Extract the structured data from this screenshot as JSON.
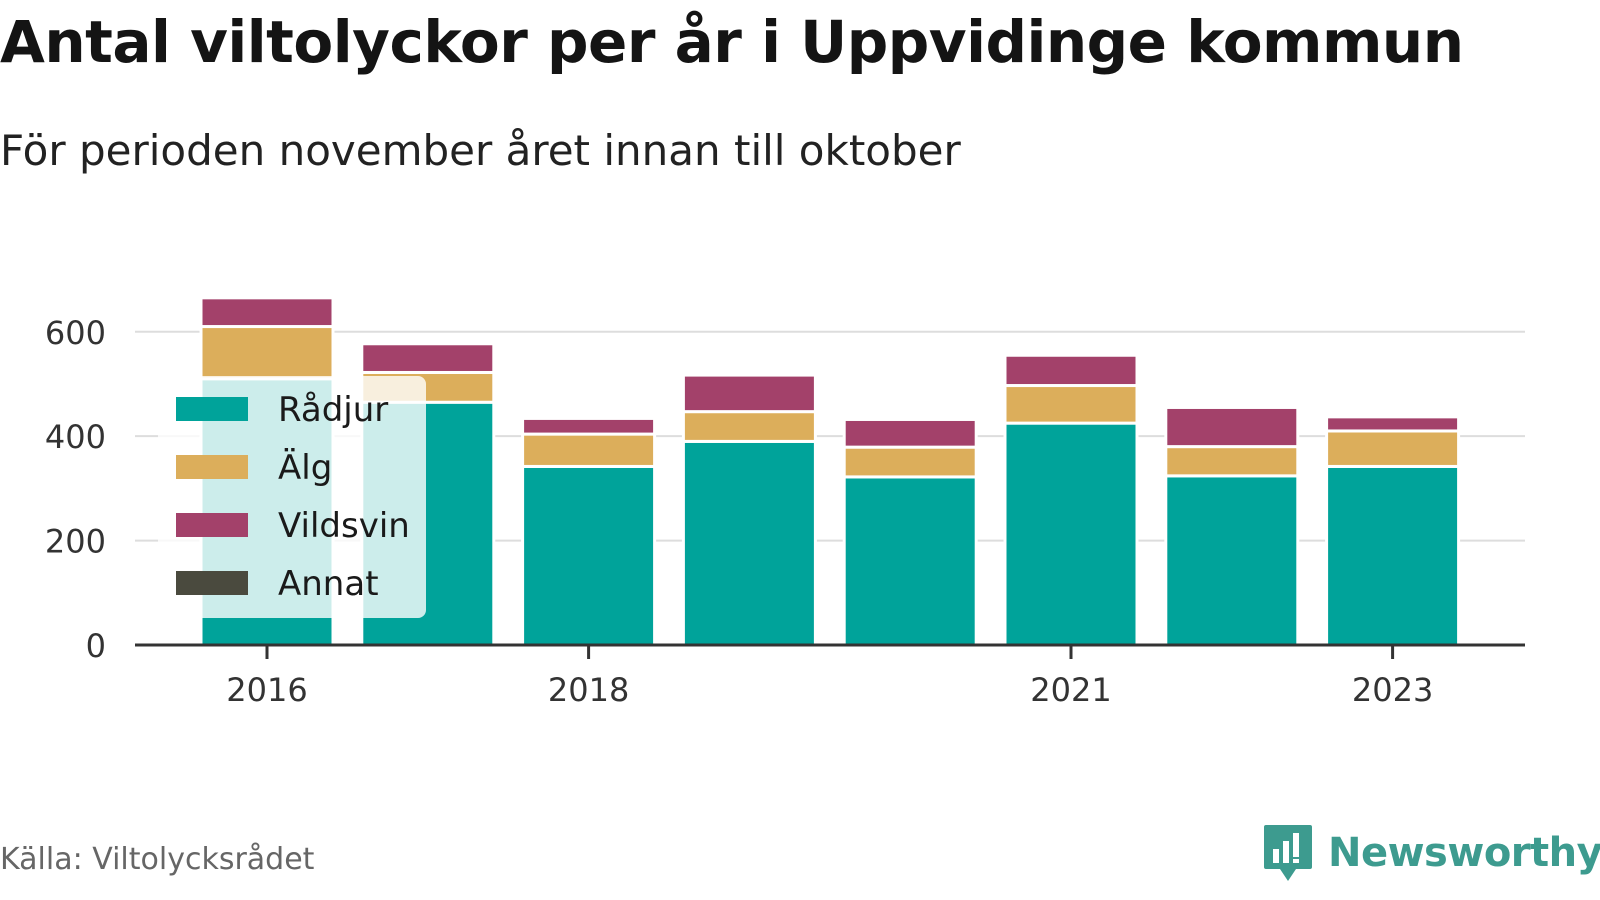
{
  "title": "Antal viltolyckor per år i Uppvidinge kommun",
  "subtitle": "För perioden november året innan till oktober",
  "source": "Källa: Viltolycksrådet",
  "brand": {
    "name": "Newsworthy",
    "icon": "newsworthy-logo-icon",
    "color": "#3d9b8f"
  },
  "chart_data": {
    "type": "bar",
    "stacked": true,
    "categories": [
      "2016",
      "2017",
      "2018",
      "2019",
      "2020",
      "2021",
      "2022",
      "2023"
    ],
    "x_tick_labels": [
      "2016",
      "2018",
      "2021",
      "2023"
    ],
    "series": [
      {
        "name": "Rådjur",
        "color": "#00a39a",
        "values": [
          510,
          465,
          342,
          390,
          322,
          425,
          324,
          342
        ]
      },
      {
        "name": "Älg",
        "color": "#dcae5b",
        "values": [
          100,
          57,
          62,
          57,
          57,
          72,
          56,
          68
        ]
      },
      {
        "name": "Vildsvin",
        "color": "#a3416a",
        "values": [
          55,
          55,
          30,
          70,
          53,
          58,
          75,
          27
        ]
      },
      {
        "name": "Annat",
        "color": "#4a4a3e",
        "values": [
          0,
          0,
          0,
          0,
          0,
          0,
          0,
          0
        ]
      }
    ],
    "ylim": [
      0,
      680
    ],
    "yticks": [
      0,
      200,
      400,
      600
    ],
    "grid": true,
    "legend_position": "left, overlapping plot"
  }
}
